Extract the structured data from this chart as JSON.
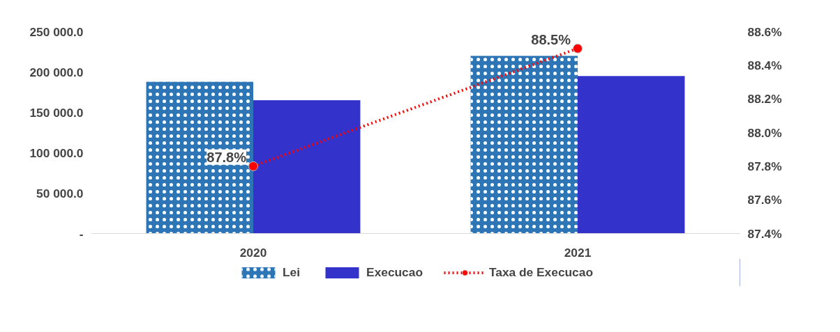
{
  "chart_data": {
    "type": "bar",
    "categories": [
      "2020",
      "2021"
    ],
    "series": [
      {
        "name": "Lei",
        "color": "#2e75b6",
        "values": [
          188000,
          220000
        ]
      },
      {
        "name": "Execucao",
        "color": "#3333cc",
        "values": [
          165000,
          195000
        ]
      },
      {
        "name": "Taxa de Execucao",
        "type": "line",
        "axis": "y2",
        "color": "#ff0000",
        "values": [
          87.8,
          88.5
        ],
        "marker": "circle",
        "line_style": "dotted",
        "value_labels": [
          "87.8%",
          "88.5%"
        ]
      }
    ],
    "ylim": [
      0,
      250000
    ],
    "yticks": [
      {
        "value": 0,
        "label": "-"
      },
      {
        "value": 50000,
        "label": "50 000.0"
      },
      {
        "value": 100000,
        "label": "100 000.0"
      },
      {
        "value": 150000,
        "label": "150 000.0"
      },
      {
        "value": 200000,
        "label": "200 000.0"
      },
      {
        "value": 250000,
        "label": "250 000.0"
      }
    ],
    "y2lim": [
      87.4,
      88.6
    ],
    "y2ticks": [
      {
        "value": 87.4,
        "label": "87.4%"
      },
      {
        "value": 87.6,
        "label": "87.6%"
      },
      {
        "value": 87.8,
        "label": "87.8%"
      },
      {
        "value": 88.0,
        "label": "88.0%"
      },
      {
        "value": 88.2,
        "label": "88.2%"
      },
      {
        "value": 88.4,
        "label": "88.4%"
      },
      {
        "value": 88.6,
        "label": "88.6%"
      }
    ],
    "grid": false,
    "legend": "bottom"
  }
}
